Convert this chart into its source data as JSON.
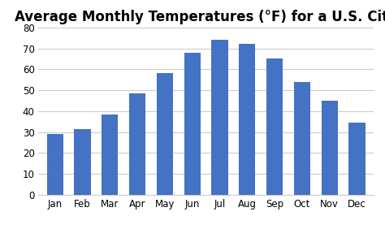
{
  "title": "Average Monthly Temperatures (°F) for a U.S. City",
  "months": [
    "Jan",
    "Feb",
    "Mar",
    "Apr",
    "May",
    "Jun",
    "Jul",
    "Aug",
    "Sep",
    "Oct",
    "Nov",
    "Dec"
  ],
  "values": [
    29,
    31.5,
    38.5,
    48.5,
    58,
    68,
    74,
    72,
    65,
    54,
    45,
    34.5
  ],
  "bar_color": "#4472C4",
  "ylim": [
    0,
    80
  ],
  "yticks": [
    0,
    10,
    20,
    30,
    40,
    50,
    60,
    70,
    80
  ],
  "background_color": "#ffffff",
  "title_fontsize": 12,
  "tick_fontsize": 8.5,
  "bar_width": 0.6,
  "grid_color": "#cccccc",
  "grid_linewidth": 0.8
}
